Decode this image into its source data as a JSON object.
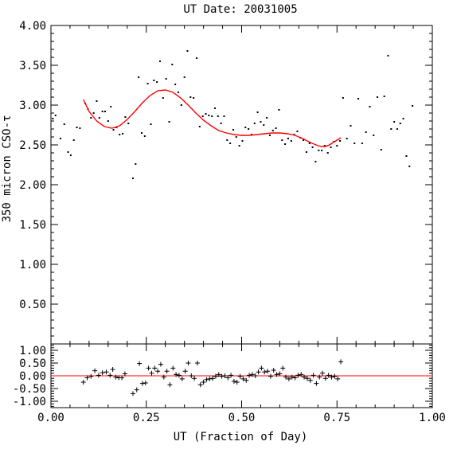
{
  "chart_data": [
    {
      "type": "scatter",
      "title": "UT Date: 20031005",
      "xlabel": "UT (Fraction of Day)",
      "ylabel": "350 micron CSO-τ",
      "xlim": [
        0.0,
        1.0
      ],
      "ylim": [
        0.0,
        4.0
      ],
      "x_ticks": [
        "0.00",
        "0.25",
        "0.50",
        "0.75",
        "1.00"
      ],
      "y_ticks": [
        "0.50",
        "1.00",
        "1.50",
        "2.00",
        "2.50",
        "3.00",
        "3.50",
        "4.00"
      ],
      "grid": false,
      "marker_color": "#000000",
      "fit_color": "#ff0000",
      "points": [
        [
          0.005,
          2.83
        ],
        [
          0.012,
          2.87
        ],
        [
          0.025,
          2.58
        ],
        [
          0.035,
          2.76
        ],
        [
          0.045,
          2.41
        ],
        [
          0.052,
          2.37
        ],
        [
          0.06,
          2.56
        ],
        [
          0.068,
          2.72
        ],
        [
          0.076,
          2.71
        ],
        [
          0.09,
          3.02
        ],
        [
          0.097,
          2.95
        ],
        [
          0.105,
          2.84
        ],
        [
          0.112,
          2.9
        ],
        [
          0.12,
          3.05
        ],
        [
          0.127,
          2.84
        ],
        [
          0.135,
          2.92
        ],
        [
          0.142,
          2.92
        ],
        [
          0.15,
          2.8
        ],
        [
          0.157,
          2.98
        ],
        [
          0.164,
          2.69
        ],
        [
          0.172,
          2.72
        ],
        [
          0.18,
          2.63
        ],
        [
          0.188,
          2.64
        ],
        [
          0.195,
          2.85
        ],
        [
          0.203,
          2.77
        ],
        [
          0.215,
          2.08
        ],
        [
          0.222,
          2.26
        ],
        [
          0.23,
          3.35
        ],
        [
          0.238,
          2.65
        ],
        [
          0.246,
          2.61
        ],
        [
          0.254,
          3.27
        ],
        [
          0.262,
          2.76
        ],
        [
          0.27,
          3.31
        ],
        [
          0.278,
          3.29
        ],
        [
          0.286,
          3.55
        ],
        [
          0.294,
          3.09
        ],
        [
          0.302,
          3.33
        ],
        [
          0.31,
          2.79
        ],
        [
          0.318,
          3.51
        ],
        [
          0.326,
          3.26
        ],
        [
          0.334,
          3.16
        ],
        [
          0.342,
          3.0
        ],
        [
          0.35,
          3.35
        ],
        [
          0.358,
          3.68
        ],
        [
          0.366,
          3.1
        ],
        [
          0.374,
          3.09
        ],
        [
          0.382,
          3.59
        ],
        [
          0.39,
          2.73
        ],
        [
          0.398,
          2.86
        ],
        [
          0.406,
          2.89
        ],
        [
          0.414,
          2.87
        ],
        [
          0.422,
          2.86
        ],
        [
          0.43,
          2.96
        ],
        [
          0.438,
          2.86
        ],
        [
          0.446,
          2.77
        ],
        [
          0.454,
          2.86
        ],
        [
          0.462,
          2.56
        ],
        [
          0.47,
          2.52
        ],
        [
          0.478,
          2.69
        ],
        [
          0.486,
          2.6
        ],
        [
          0.494,
          2.49
        ],
        [
          0.502,
          2.55
        ],
        [
          0.51,
          2.72
        ],
        [
          0.518,
          2.7
        ],
        [
          0.526,
          2.63
        ],
        [
          0.534,
          2.77
        ],
        [
          0.542,
          2.91
        ],
        [
          0.55,
          2.79
        ],
        [
          0.558,
          2.75
        ],
        [
          0.566,
          2.84
        ],
        [
          0.574,
          2.62
        ],
        [
          0.582,
          2.68
        ],
        [
          0.59,
          2.71
        ],
        [
          0.598,
          2.94
        ],
        [
          0.606,
          2.56
        ],
        [
          0.614,
          2.51
        ],
        [
          0.622,
          2.58
        ],
        [
          0.63,
          2.55
        ],
        [
          0.638,
          2.63
        ],
        [
          0.646,
          2.67
        ],
        [
          0.654,
          2.59
        ],
        [
          0.662,
          2.56
        ],
        [
          0.67,
          2.41
        ],
        [
          0.678,
          2.52
        ],
        [
          0.686,
          2.47
        ],
        [
          0.694,
          2.29
        ],
        [
          0.702,
          2.43
        ],
        [
          0.71,
          2.43
        ],
        [
          0.718,
          2.49
        ],
        [
          0.726,
          2.4
        ],
        [
          0.734,
          2.47
        ],
        [
          0.742,
          2.54
        ],
        [
          0.75,
          2.49
        ],
        [
          0.758,
          2.55
        ],
        [
          0.766,
          3.09
        ],
        [
          0.776,
          2.58
        ],
        [
          0.786,
          2.74
        ],
        [
          0.796,
          2.52
        ],
        [
          0.806,
          3.08
        ],
        [
          0.816,
          2.52
        ],
        [
          0.826,
          2.66
        ],
        [
          0.836,
          2.98
        ],
        [
          0.846,
          2.62
        ],
        [
          0.856,
          3.1
        ],
        [
          0.866,
          2.44
        ],
        [
          0.874,
          3.11
        ],
        [
          0.884,
          3.62
        ],
        [
          0.892,
          2.7
        ],
        [
          0.9,
          2.79
        ],
        [
          0.908,
          2.7
        ],
        [
          0.916,
          2.77
        ],
        [
          0.924,
          2.83
        ],
        [
          0.932,
          2.36
        ],
        [
          0.94,
          2.23
        ],
        [
          0.948,
          2.99
        ]
      ],
      "fit_curve": [
        [
          0.085,
          3.07
        ],
        [
          0.1,
          2.92
        ],
        [
          0.12,
          2.8
        ],
        [
          0.14,
          2.73
        ],
        [
          0.16,
          2.71
        ],
        [
          0.18,
          2.74
        ],
        [
          0.2,
          2.82
        ],
        [
          0.22,
          2.92
        ],
        [
          0.24,
          3.03
        ],
        [
          0.26,
          3.12
        ],
        [
          0.28,
          3.18
        ],
        [
          0.3,
          3.19
        ],
        [
          0.32,
          3.16
        ],
        [
          0.34,
          3.09
        ],
        [
          0.36,
          3.0
        ],
        [
          0.38,
          2.9
        ],
        [
          0.4,
          2.81
        ],
        [
          0.42,
          2.74
        ],
        [
          0.44,
          2.68
        ],
        [
          0.46,
          2.65
        ],
        [
          0.48,
          2.63
        ],
        [
          0.5,
          2.62
        ],
        [
          0.52,
          2.62
        ],
        [
          0.54,
          2.63
        ],
        [
          0.56,
          2.64
        ],
        [
          0.58,
          2.65
        ],
        [
          0.6,
          2.65
        ],
        [
          0.62,
          2.64
        ],
        [
          0.64,
          2.62
        ],
        [
          0.66,
          2.58
        ],
        [
          0.68,
          2.53
        ],
        [
          0.7,
          2.49
        ],
        [
          0.71,
          2.48
        ],
        [
          0.72,
          2.48
        ],
        [
          0.73,
          2.5
        ],
        [
          0.74,
          2.53
        ],
        [
          0.75,
          2.56
        ],
        [
          0.76,
          2.59
        ]
      ]
    },
    {
      "type": "scatter",
      "xlim": [
        0.0,
        1.0
      ],
      "ylim": [
        -1.25,
        1.25
      ],
      "y_ticks": [
        "1.00",
        "0.50",
        "0.00",
        "-0.50",
        "-1.00"
      ],
      "zero_line": 0.0,
      "marker_color": "#000000",
      "zero_line_color": "#ff0000",
      "points": [
        [
          0.085,
          -0.25
        ],
        [
          0.095,
          -0.08
        ],
        [
          0.105,
          -0.02
        ],
        [
          0.115,
          0.2
        ],
        [
          0.125,
          0.02
        ],
        [
          0.135,
          0.12
        ],
        [
          0.145,
          0.15
        ],
        [
          0.155,
          0.02
        ],
        [
          0.162,
          0.25
        ],
        [
          0.17,
          -0.05
        ],
        [
          0.178,
          -0.08
        ],
        [
          0.186,
          -0.08
        ],
        [
          0.194,
          0.08
        ],
        [
          0.215,
          -0.7
        ],
        [
          0.225,
          -0.55
        ],
        [
          0.232,
          0.48
        ],
        [
          0.24,
          -0.3
        ],
        [
          0.248,
          -0.28
        ],
        [
          0.256,
          0.3
        ],
        [
          0.264,
          0.1
        ],
        [
          0.272,
          0.3
        ],
        [
          0.28,
          0.18
        ],
        [
          0.288,
          0.45
        ],
        [
          0.296,
          -0.05
        ],
        [
          0.304,
          0.18
        ],
        [
          0.312,
          -0.35
        ],
        [
          0.32,
          0.3
        ],
        [
          0.328,
          0.05
        ],
        [
          0.336,
          0.02
        ],
        [
          0.344,
          -0.12
        ],
        [
          0.352,
          0.18
        ],
        [
          0.36,
          0.5
        ],
        [
          0.368,
          0.0
        ],
        [
          0.376,
          -0.1
        ],
        [
          0.384,
          0.5
        ],
        [
          0.392,
          -0.35
        ],
        [
          0.4,
          -0.25
        ],
        [
          0.408,
          -0.15
        ],
        [
          0.416,
          -0.12
        ],
        [
          0.424,
          -0.1
        ],
        [
          0.432,
          -0.02
        ],
        [
          0.44,
          0.05
        ],
        [
          0.448,
          -0.02
        ],
        [
          0.456,
          0.0
        ],
        [
          0.464,
          -0.08
        ],
        [
          0.472,
          0.02
        ],
        [
          0.48,
          -0.22
        ],
        [
          0.488,
          -0.25
        ],
        [
          0.496,
          -0.02
        ],
        [
          0.504,
          -0.12
        ],
        [
          0.512,
          -0.18
        ],
        [
          0.52,
          0.02
        ],
        [
          0.528,
          0.05
        ],
        [
          0.536,
          0.0
        ],
        [
          0.544,
          0.15
        ],
        [
          0.552,
          0.3
        ],
        [
          0.56,
          0.15
        ],
        [
          0.568,
          0.18
        ],
        [
          0.576,
          -0.02
        ],
        [
          0.584,
          0.22
        ],
        [
          0.592,
          0.05
        ],
        [
          0.6,
          0.08
        ],
        [
          0.608,
          0.3
        ],
        [
          0.616,
          -0.05
        ],
        [
          0.624,
          -0.12
        ],
        [
          0.632,
          -0.05
        ],
        [
          0.64,
          -0.08
        ],
        [
          0.648,
          0.02
        ],
        [
          0.656,
          0.05
        ],
        [
          0.664,
          -0.05
        ],
        [
          0.672,
          -0.1
        ],
        [
          0.68,
          -0.18
        ],
        [
          0.688,
          0.02
        ],
        [
          0.696,
          -0.3
        ],
        [
          0.704,
          -0.05
        ],
        [
          0.712,
          0.1
        ],
        [
          0.72,
          -0.1
        ],
        [
          0.728,
          0.02
        ],
        [
          0.736,
          -0.05
        ],
        [
          0.744,
          -0.02
        ],
        [
          0.752,
          -0.12
        ],
        [
          0.76,
          0.55
        ]
      ]
    }
  ]
}
